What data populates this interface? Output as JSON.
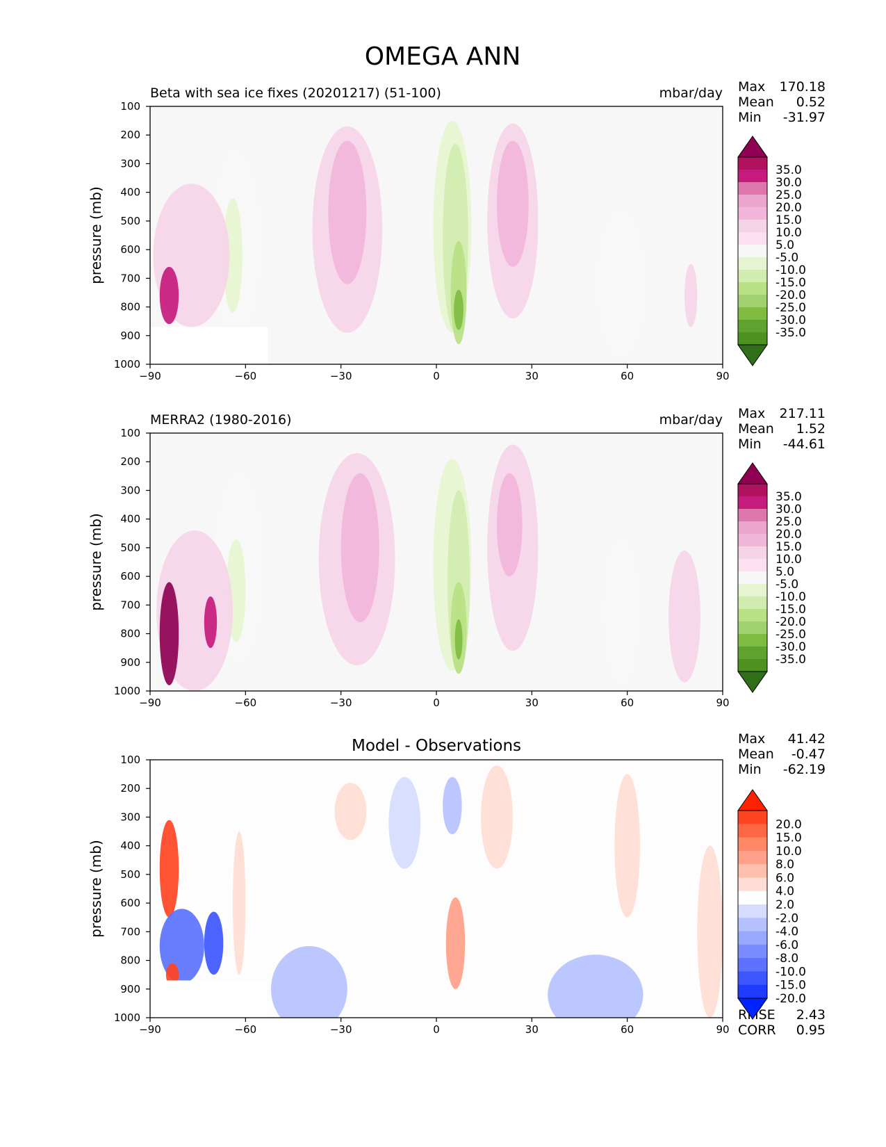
{
  "title": "OMEGA ANN",
  "chart_data": [
    {
      "type": "contour",
      "id": "test",
      "left_title": "Beta with sea ice fixes (20201217) (51-100)",
      "units": "mbar/day",
      "ylabel": "pressure (mb)",
      "xlabel": "",
      "xlim": [
        -90,
        90
      ],
      "ylim": [
        1000,
        100
      ],
      "xticks": [
        -90,
        -60,
        -30,
        0,
        30,
        60,
        90
      ],
      "xtick_labels": [
        "−90",
        "−60",
        "−30",
        "0",
        "30",
        "60",
        "90"
      ],
      "yticks": [
        100,
        200,
        300,
        400,
        500,
        600,
        700,
        800,
        900,
        1000
      ],
      "stats": {
        "labels": [
          "Max",
          "Mean",
          "Min"
        ],
        "values": [
          "170.18",
          "0.52",
          "-31.97"
        ]
      },
      "colorbar": {
        "levels": [
          "35.0",
          "30.0",
          "25.0",
          "20.0",
          "15.0",
          "10.0",
          "5.0",
          "-5.0",
          "-10.0",
          "-15.0",
          "-20.0",
          "-25.0",
          "-30.0",
          "-35.0"
        ],
        "colors": [
          "#8e0152",
          "#b0125f",
          "#c51b7d",
          "#de77ae",
          "#eaa6cd",
          "#f1b6da",
          "#f6d4e8",
          "#fde0ef",
          "#f7f7f7",
          "#e6f5d0",
          "#d0ecb0",
          "#b8e186",
          "#a1d26f",
          "#7fbc41",
          "#5fa230",
          "#4d9221",
          "#2f6f17"
        ]
      },
      "features": [
        {
          "lat": -28,
          "p": 530,
          "rlat": 11,
          "rp": 360,
          "value": 8
        },
        {
          "lat": -28,
          "p": 470,
          "rlat": 6,
          "rp": 250,
          "value": 11
        },
        {
          "lat": 5,
          "p": 520,
          "rlat": 6,
          "rp": 370,
          "value": -11
        },
        {
          "lat": 6,
          "p": 560,
          "rlat": 4,
          "rp": 330,
          "value": -17
        },
        {
          "lat": 7,
          "p": 750,
          "rlat": 2.5,
          "rp": 180,
          "value": -23
        },
        {
          "lat": 7,
          "p": 810,
          "rlat": 1.5,
          "rp": 70,
          "value": -32
        },
        {
          "lat": 24,
          "p": 500,
          "rlat": 8,
          "rp": 340,
          "value": 8
        },
        {
          "lat": 24,
          "p": 440,
          "rlat": 5,
          "rp": 220,
          "value": 11
        },
        {
          "lat": -63,
          "p": 580,
          "rlat": 8,
          "rp": 330,
          "value": -8
        },
        {
          "lat": -64,
          "p": 620,
          "rlat": 3,
          "rp": 200,
          "value": -15
        },
        {
          "lat": -77,
          "p": 620,
          "rlat": 12,
          "rp": 250,
          "value": 8
        },
        {
          "lat": -84,
          "p": 760,
          "rlat": 3,
          "rp": 100,
          "value": 28
        },
        {
          "lat": 58,
          "p": 720,
          "rlat": 8,
          "rp": 260,
          "value": -8
        },
        {
          "lat": 80,
          "p": 760,
          "rlat": 2,
          "rp": 110,
          "value": 7
        }
      ]
    },
    {
      "type": "contour",
      "id": "ref",
      "left_title": "MERRA2 (1980-2016)",
      "units": "mbar/day",
      "ylabel": "pressure (mb)",
      "xlabel": "",
      "xlim": [
        -90,
        90
      ],
      "ylim": [
        1000,
        100
      ],
      "xticks": [
        -90,
        -60,
        -30,
        0,
        30,
        60,
        90
      ],
      "xtick_labels": [
        "−90",
        "−60",
        "−30",
        "0",
        "30",
        "60",
        "90"
      ],
      "yticks": [
        100,
        200,
        300,
        400,
        500,
        600,
        700,
        800,
        900,
        1000
      ],
      "stats": {
        "labels": [
          "Max",
          "Mean",
          "Min"
        ],
        "values": [
          "217.11",
          "1.52",
          "-44.61"
        ]
      },
      "colorbar": {
        "levels": [
          "35.0",
          "30.0",
          "25.0",
          "20.0",
          "15.0",
          "10.0",
          "5.0",
          "-5.0",
          "-10.0",
          "-15.0",
          "-20.0",
          "-25.0",
          "-30.0",
          "-35.0"
        ],
        "colors": [
          "#8e0152",
          "#b0125f",
          "#c51b7d",
          "#de77ae",
          "#eaa6cd",
          "#f1b6da",
          "#f6d4e8",
          "#fde0ef",
          "#f7f7f7",
          "#e6f5d0",
          "#d0ecb0",
          "#b8e186",
          "#a1d26f",
          "#7fbc41",
          "#5fa230",
          "#4d9221",
          "#2f6f17"
        ]
      },
      "features": [
        {
          "lat": -25,
          "p": 540,
          "rlat": 12,
          "rp": 370,
          "value": 8
        },
        {
          "lat": -24,
          "p": 500,
          "rlat": 6,
          "rp": 260,
          "value": 11
        },
        {
          "lat": 5,
          "p": 560,
          "rlat": 6,
          "rp": 370,
          "value": -11
        },
        {
          "lat": 7,
          "p": 620,
          "rlat": 3.5,
          "rp": 320,
          "value": -17
        },
        {
          "lat": 7,
          "p": 780,
          "rlat": 2.5,
          "rp": 160,
          "value": -25
        },
        {
          "lat": 7,
          "p": 820,
          "rlat": 1.2,
          "rp": 70,
          "value": -33
        },
        {
          "lat": 24,
          "p": 500,
          "rlat": 8,
          "rp": 360,
          "value": 8
        },
        {
          "lat": 23,
          "p": 420,
          "rlat": 4,
          "rp": 180,
          "value": 11
        },
        {
          "lat": -62,
          "p": 570,
          "rlat": 8,
          "rp": 330,
          "value": -8
        },
        {
          "lat": -63,
          "p": 650,
          "rlat": 3,
          "rp": 180,
          "value": -15
        },
        {
          "lat": -76,
          "p": 720,
          "rlat": 12,
          "rp": 280,
          "value": 8
        },
        {
          "lat": -84,
          "p": 800,
          "rlat": 3,
          "rp": 180,
          "value": 36
        },
        {
          "lat": -71,
          "p": 760,
          "rlat": 2,
          "rp": 90,
          "value": 25
        },
        {
          "lat": 58,
          "p": 720,
          "rlat": 6,
          "rp": 260,
          "value": -8
        },
        {
          "lat": 78,
          "p": 740,
          "rlat": 5,
          "rp": 230,
          "value": 7
        }
      ]
    },
    {
      "type": "contour",
      "id": "diff",
      "title": "Model - Observations",
      "left_title": "",
      "units": "",
      "ylabel": "pressure (mb)",
      "xlabel": "",
      "xlim": [
        -90,
        90
      ],
      "ylim": [
        1000,
        100
      ],
      "xticks": [
        -90,
        -60,
        -30,
        0,
        30,
        60,
        90
      ],
      "xtick_labels": [
        "−90",
        "−60",
        "−30",
        "0",
        "30",
        "60",
        "90"
      ],
      "yticks": [
        100,
        200,
        300,
        400,
        500,
        600,
        700,
        800,
        900,
        1000
      ],
      "stats": {
        "labels": [
          "Max",
          "Mean",
          "Min"
        ],
        "values": [
          "41.42",
          "-0.47",
          "-62.19"
        ]
      },
      "extra_stats": {
        "labels": [
          "RMSE",
          "CORR"
        ],
        "values": [
          "2.43",
          "0.95"
        ]
      },
      "colorbar": {
        "levels": [
          "20.0",
          "15.0",
          "10.0",
          "8.0",
          "6.0",
          "4.0",
          "2.0",
          "-2.0",
          "-4.0",
          "-6.0",
          "-8.0",
          "-10.0",
          "-15.0",
          "-20.0"
        ],
        "colors": [
          "#ff2200",
          "#ff4422",
          "#ff6644",
          "#ff8866",
          "#ffa08a",
          "#ffbfae",
          "#ffddd4",
          "#ffffff",
          "#d6dcff",
          "#b6c2ff",
          "#98a8ff",
          "#7a8cff",
          "#5c72ff",
          "#3e56ff",
          "#1f3bff",
          "#0022ff"
        ]
      },
      "features": [
        {
          "lat": -84,
          "p": 480,
          "rlat": 3,
          "rp": 170,
          "value": 17
        },
        {
          "lat": -80,
          "p": 750,
          "rlat": 7,
          "rp": 130,
          "value": -12
        },
        {
          "lat": -70,
          "p": 740,
          "rlat": 3,
          "rp": 110,
          "value": -18
        },
        {
          "lat": -83,
          "p": 850,
          "rlat": 2,
          "rp": 40,
          "value": 15
        },
        {
          "lat": -27,
          "p": 280,
          "rlat": 5,
          "rp": 100,
          "value": 3
        },
        {
          "lat": -10,
          "p": 320,
          "rlat": 5,
          "rp": 160,
          "value": -3
        },
        {
          "lat": 5,
          "p": 260,
          "rlat": 3,
          "rp": 100,
          "value": -5
        },
        {
          "lat": 19,
          "p": 300,
          "rlat": 5,
          "rp": 180,
          "value": 3
        },
        {
          "lat": 6,
          "p": 740,
          "rlat": 3,
          "rp": 160,
          "value": 7
        },
        {
          "lat": -40,
          "p": 900,
          "rlat": 12,
          "rp": 150,
          "value": -5
        },
        {
          "lat": 50,
          "p": 920,
          "rlat": 15,
          "rp": 140,
          "value": -6
        },
        {
          "lat": 60,
          "p": 400,
          "rlat": 4,
          "rp": 250,
          "value": 3
        },
        {
          "lat": 86,
          "p": 700,
          "rlat": 4,
          "rp": 300,
          "value": 3
        },
        {
          "lat": -62,
          "p": 600,
          "rlat": 2,
          "rp": 250,
          "value": 3
        }
      ]
    }
  ]
}
